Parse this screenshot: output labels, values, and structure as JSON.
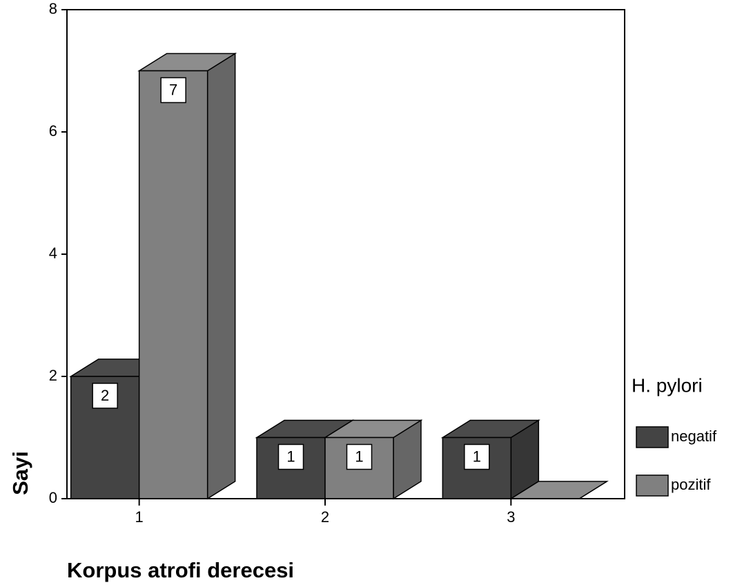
{
  "chart_data": {
    "type": "bar3d",
    "x_label": "Korpus atrofi derecesi",
    "y_label": "Sayi",
    "categories": [
      "1",
      "2",
      "3"
    ],
    "legend_title": "H. pylori",
    "series": [
      {
        "name": "negatif",
        "color": "#444444",
        "values": [
          2,
          1,
          1
        ]
      },
      {
        "name": "pozitif",
        "color": "#808080",
        "values": [
          7,
          1,
          0
        ]
      }
    ],
    "ylim": [
      0,
      8
    ],
    "yticks": [
      0,
      2,
      4,
      6,
      8
    ],
    "legend": "right"
  }
}
